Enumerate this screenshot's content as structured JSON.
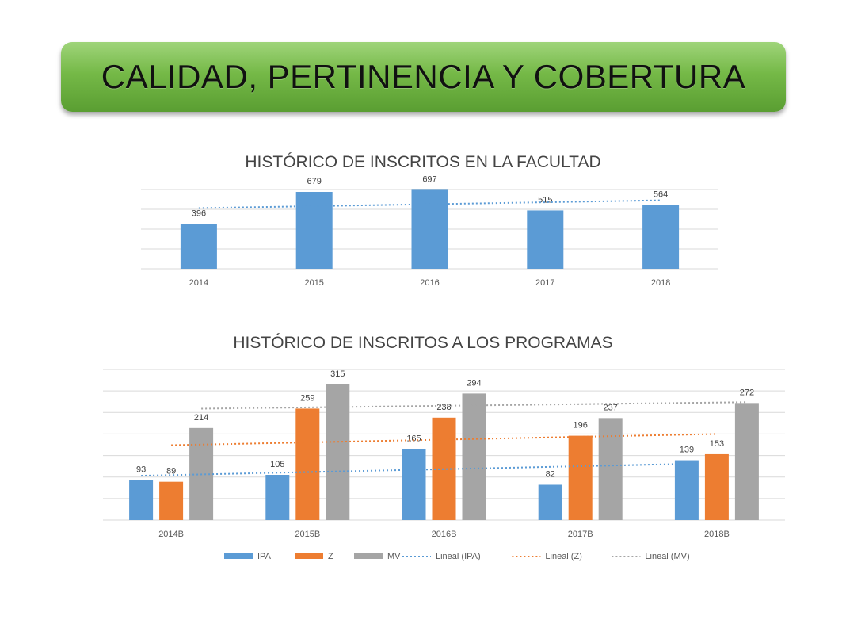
{
  "banner": {
    "title": "CALIDAD, PERTINENCIA Y COBERTURA"
  },
  "chart_data": [
    {
      "type": "bar",
      "title": "HISTÓRICO DE INSCRITOS EN LA FACULTAD",
      "categories": [
        "2014",
        "2015",
        "2016",
        "2017",
        "2018"
      ],
      "series": [
        {
          "values": [
            396,
            679,
            697,
            515,
            564
          ],
          "color": "#5b9bd5"
        }
      ],
      "trendline": {
        "style": "dotted",
        "color": "#5b9bd5"
      },
      "ylim": [
        0,
        700
      ],
      "grid": true,
      "data_labels": true,
      "legend": "none"
    },
    {
      "type": "bar",
      "title": "HISTÓRICO DE INSCRITOS A LOS PROGRAMAS",
      "categories": [
        "2014B",
        "2015B",
        "2016B",
        "2017B",
        "2018B"
      ],
      "series": [
        {
          "name": "IPA",
          "values": [
            93,
            105,
            165,
            82,
            139
          ],
          "color": "#5b9bd5"
        },
        {
          "name": "Z",
          "values": [
            89,
            259,
            238,
            196,
            153
          ],
          "color": "#ed7d31"
        },
        {
          "name": "MV",
          "values": [
            214,
            315,
            294,
            237,
            272
          ],
          "color": "#a5a5a5"
        }
      ],
      "trendlines": [
        {
          "name": "Lineal (IPA)",
          "color": "#5b9bd5"
        },
        {
          "name": "Lineal (Z)",
          "color": "#ed7d31"
        },
        {
          "name": "Lineal (MV)",
          "color": "#a5a5a5"
        }
      ],
      "ylim": [
        0,
        350
      ],
      "grid": true,
      "data_labels": true,
      "legend": "bottom"
    }
  ]
}
